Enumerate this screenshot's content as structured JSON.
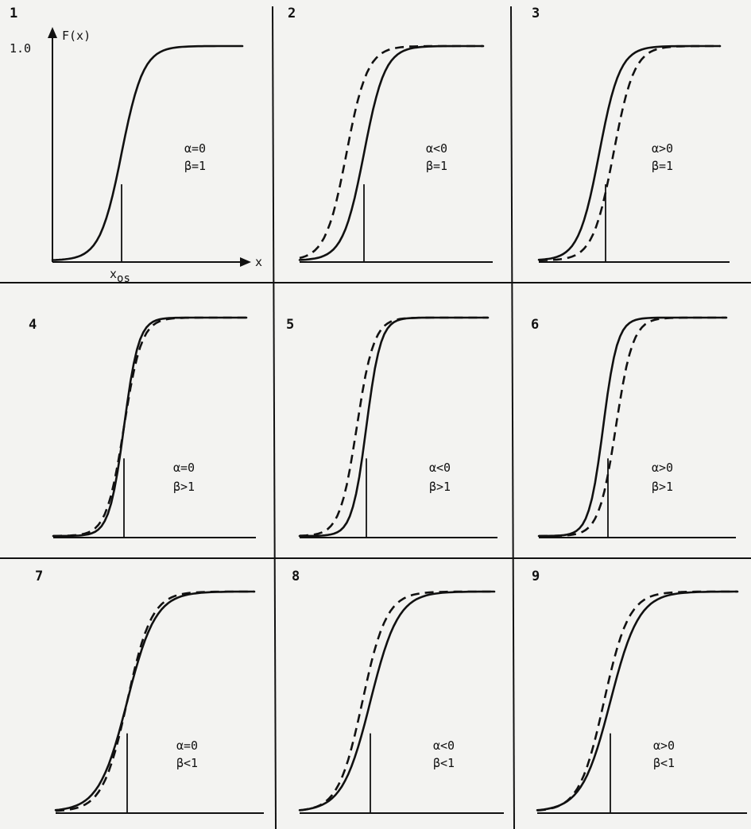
{
  "axis": {
    "y_label": "F(x)",
    "y_tick": "1.0",
    "x_label": "x",
    "x_marker": "x",
    "x_marker_sub": "os"
  },
  "panels": [
    {
      "number": "1",
      "alpha": "α=0",
      "beta": "β=1",
      "dashed": false
    },
    {
      "number": "2",
      "alpha": "α<0",
      "beta": "β=1",
      "dashed": true
    },
    {
      "number": "3",
      "alpha": "α>0",
      "beta": "β=1",
      "dashed": true
    },
    {
      "number": "4",
      "alpha": "α=0",
      "beta": "β>1",
      "dashed": true
    },
    {
      "number": "5",
      "alpha": "α<0",
      "beta": "β>1",
      "dashed": true
    },
    {
      "number": "6",
      "alpha": "α>0",
      "beta": "β>1",
      "dashed": true
    },
    {
      "number": "7",
      "alpha": "α=0",
      "beta": "β<1",
      "dashed": true
    },
    {
      "number": "8",
      "alpha": "α<0",
      "beta": "β<1",
      "dashed": true
    },
    {
      "number": "9",
      "alpha": "α>0",
      "beta": "β<1",
      "dashed": true
    }
  ]
}
